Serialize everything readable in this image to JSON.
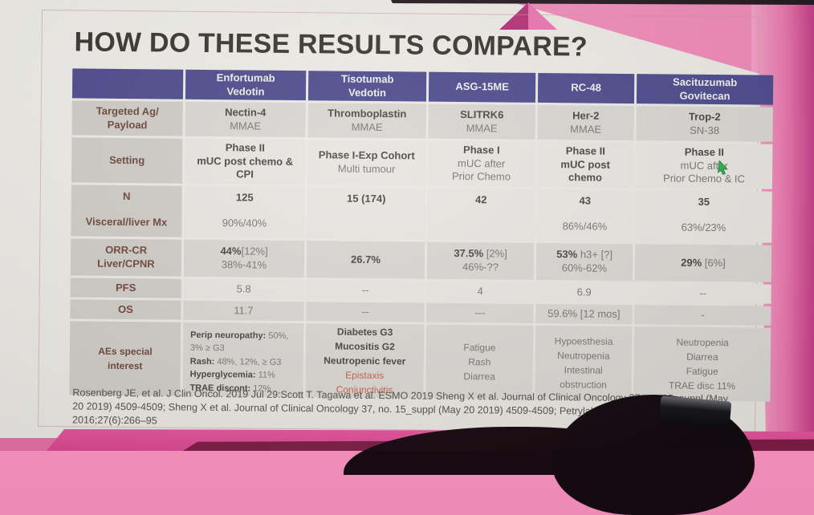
{
  "colors": {
    "wall_pink": "#ee86b3",
    "wall_accent_dark": "#b53279",
    "bottom_band": "#dd4f97",
    "bottom_strip": "#7c1d46",
    "header_purple": "#4c4a8c",
    "label_text": "#6d4638",
    "alert_red": "#c7604a"
  },
  "cursor": {
    "name": "green-pointer-cursor",
    "color": "#2fae4e"
  },
  "slide": {
    "title": "HOW DO THESE RESULTS COMPARE?",
    "references": "Rosenberg JE, et al. J Clin Oncol. 2019 Jul 29:Scott T. Tagawa et al. ESMO 2019 Sheng X et al. Journal of Clinical Oncology 37, no. 15_suppl (May 20 2019) 4509-4509; Sheng X et al. Journal of Clinical Oncology 37, no. 15_suppl (May 20 2019) 4509-4509; Petrylak D, et al Ann Oncol. 2016;27(6):266–95",
    "table": {
      "header": [
        "",
        "Enfortumab\nVedotin",
        "Tisotumab\nVedotin",
        "ASG-15ME",
        "RC-48",
        "Sacituzumab\nGovitecan"
      ],
      "rows": [
        {
          "label": [
            "Targeted Ag/",
            "Payload"
          ],
          "cells": [
            {
              "lines": [
                {
                  "t": "Nectin-4",
                  "s": "b"
                },
                {
                  "t": "MMAE",
                  "s": "n"
                }
              ]
            },
            {
              "lines": [
                {
                  "t": "Thromboplastin",
                  "s": "b"
                },
                {
                  "t": "MMAE",
                  "s": "n"
                }
              ]
            },
            {
              "lines": [
                {
                  "t": "SLITRK6",
                  "s": "b"
                },
                {
                  "t": "MMAE",
                  "s": "n"
                }
              ]
            },
            {
              "lines": [
                {
                  "t": "Her-2",
                  "s": "b"
                },
                {
                  "t": "MMAE",
                  "s": "n"
                }
              ]
            },
            {
              "lines": [
                {
                  "t": "Trop-2",
                  "s": "b"
                },
                {
                  "t": "SN-38",
                  "s": "n"
                }
              ]
            }
          ]
        },
        {
          "label": [
            "Setting"
          ],
          "cells": [
            {
              "lines": [
                {
                  "t": "Phase II",
                  "s": "b"
                },
                {
                  "t": "mUC post chemo &",
                  "s": "b"
                },
                {
                  "t": "CPI",
                  "s": "b"
                }
              ]
            },
            {
              "lines": [
                {
                  "t": "Phase I-Exp Cohort",
                  "s": "b"
                },
                {
                  "t": "Multi tumour",
                  "s": "n"
                }
              ]
            },
            {
              "lines": [
                {
                  "t": "Phase I",
                  "s": "b"
                },
                {
                  "t": "mUC after",
                  "s": "n"
                },
                {
                  "t": "Prior Chemo",
                  "s": "n"
                }
              ]
            },
            {
              "lines": [
                {
                  "t": "Phase II",
                  "s": "b"
                },
                {
                  "t": "mUC post",
                  "s": "b"
                },
                {
                  "t": "chemo",
                  "s": "b"
                }
              ]
            },
            {
              "lines": [
                {
                  "t": "Phase II",
                  "s": "b"
                },
                {
                  "t": "mUC after",
                  "s": "n"
                },
                {
                  "t": "Prior Chemo & IC",
                  "s": "n"
                }
              ]
            }
          ]
        },
        {
          "label": [
            "N",
            "",
            "Visceral/liver Mx"
          ],
          "cells": [
            {
              "lines": [
                {
                  "t": "125",
                  "s": "b"
                },
                {
                  "t": "",
                  "s": "n"
                },
                {
                  "t": "90%/40%",
                  "s": "n"
                }
              ]
            },
            {
              "lines": [
                {
                  "t": "15 (174)",
                  "s": "b"
                }
              ]
            },
            {
              "lines": [
                {
                  "t": "42",
                  "s": "b"
                }
              ]
            },
            {
              "lines": [
                {
                  "t": "43",
                  "s": "b"
                },
                {
                  "t": "",
                  "s": "n"
                },
                {
                  "t": "86%/46%",
                  "s": "n"
                }
              ]
            },
            {
              "lines": [
                {
                  "t": "35",
                  "s": "b"
                },
                {
                  "t": "",
                  "s": "n"
                },
                {
                  "t": "63%/23%",
                  "s": "n"
                }
              ]
            }
          ]
        },
        {
          "label": [
            "ORR-CR",
            "Liver/CPNR"
          ],
          "cells": [
            {
              "lines": [
                {
                  "t": "44%",
                  "s": "b",
                  "t2": "[12%]",
                  "s2": "n"
                },
                {
                  "t": "38%-41%",
                  "s": "n"
                }
              ]
            },
            {
              "lines": [
                {
                  "t": "26.7%",
                  "s": "b"
                }
              ]
            },
            {
              "lines": [
                {
                  "t": "37.5%",
                  "s": "b",
                  "t2": " [2%]",
                  "s2": "n"
                },
                {
                  "t": "46%-??",
                  "s": "n"
                }
              ]
            },
            {
              "lines": [
                {
                  "t": "53%",
                  "s": "b",
                  "t2": " h3+ [?]",
                  "s2": "n"
                },
                {
                  "t": "60%-62%",
                  "s": "n"
                }
              ]
            },
            {
              "lines": [
                {
                  "t": "29%",
                  "s": "b",
                  "t2": " [6%]",
                  "s2": "n"
                }
              ]
            }
          ]
        },
        {
          "label": [
            "PFS"
          ],
          "cells": [
            {
              "lines": [
                {
                  "t": "5.8",
                  "s": "n"
                }
              ]
            },
            {
              "lines": [
                {
                  "t": "--",
                  "s": "n"
                }
              ]
            },
            {
              "lines": [
                {
                  "t": "4",
                  "s": "n"
                }
              ]
            },
            {
              "lines": [
                {
                  "t": "6.9",
                  "s": "n"
                }
              ]
            },
            {
              "lines": [
                {
                  "t": "--",
                  "s": "n"
                }
              ]
            }
          ]
        },
        {
          "label": [
            "OS"
          ],
          "cells": [
            {
              "lines": [
                {
                  "t": "11.7",
                  "s": "n"
                }
              ]
            },
            {
              "lines": [
                {
                  "t": "--",
                  "s": "n"
                }
              ]
            },
            {
              "lines": [
                {
                  "t": "---",
                  "s": "n"
                }
              ]
            },
            {
              "lines": [
                {
                  "t": "59.6% [12 mos]",
                  "s": "n"
                }
              ]
            },
            {
              "lines": [
                {
                  "t": "-",
                  "s": "n"
                }
              ]
            }
          ]
        },
        {
          "label": [
            "AEs special",
            "interest"
          ],
          "cells": [
            {
              "align": "left",
              "lines": [
                {
                  "t": "Perip neuropathy:",
                  "s": "b",
                  "t2": " 50%,",
                  "s2": "n"
                },
                {
                  "t": "3% ≥ G3",
                  "s": "n"
                },
                {
                  "t": "Rash:",
                  "s": "b",
                  "t2": " 48%, 12%, ≥ G3",
                  "s2": "n"
                },
                {
                  "t": "Hyperglycemia:",
                  "s": "b",
                  "t2": " 11%",
                  "s2": "n"
                },
                {
                  "t": "TRAE discont:",
                  "s": "b",
                  "t2": " 12%",
                  "s2": "n"
                }
              ]
            },
            {
              "lines": [
                {
                  "t": "Diabetes G3",
                  "s": "b"
                },
                {
                  "t": "Mucositis G2",
                  "s": "b"
                },
                {
                  "t": "Neutropenic fever",
                  "s": "b"
                },
                {
                  "t": "Epistaxis",
                  "s": "r"
                },
                {
                  "t": "Conjunctivitis",
                  "s": "r"
                }
              ]
            },
            {
              "lines": [
                {
                  "t": "Fatigue",
                  "s": "n"
                },
                {
                  "t": "Rash",
                  "s": "n"
                },
                {
                  "t": "Diarrea",
                  "s": "n"
                }
              ]
            },
            {
              "lines": [
                {
                  "t": "Hypoesthesia",
                  "s": "n"
                },
                {
                  "t": "Neutropenia",
                  "s": "n"
                },
                {
                  "t": "Intestinal",
                  "s": "n"
                },
                {
                  "t": "obstruction",
                  "s": "n"
                }
              ]
            },
            {
              "lines": [
                {
                  "t": "Neutropenia",
                  "s": "n"
                },
                {
                  "t": "Diarrea",
                  "s": "n"
                },
                {
                  "t": "Fatigue",
                  "s": "n"
                },
                {
                  "t": "TRAE disc 11%",
                  "s": "n"
                }
              ]
            }
          ]
        }
      ]
    }
  }
}
